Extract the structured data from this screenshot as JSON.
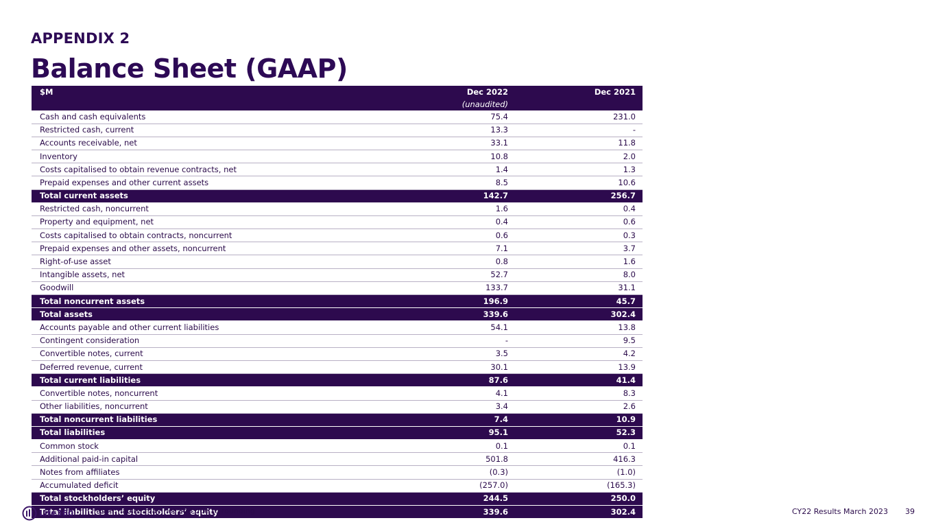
{
  "header": {
    "appendix": "APPENDIX 2",
    "title": "Balance Sheet (GAAP)"
  },
  "table": {
    "columns": [
      "$M",
      "Dec 2022",
      "Dec 2021"
    ],
    "subheader": "(unaudited)",
    "rows": [
      {
        "label": "Cash and cash equivalents",
        "dec2022": "75.4",
        "dec2021": "231.0",
        "total": false
      },
      {
        "label": "Restricted cash, current",
        "dec2022": "13.3",
        "dec2021": "-",
        "total": false
      },
      {
        "label": "Accounts receivable, net",
        "dec2022": "33.1",
        "dec2021": "11.8",
        "total": false
      },
      {
        "label": "Inventory",
        "dec2022": "10.8",
        "dec2021": "2.0",
        "total": false
      },
      {
        "label": "Costs capitalised to obtain revenue contracts, net",
        "dec2022": "1.4",
        "dec2021": "1.3",
        "total": false
      },
      {
        "label": "Prepaid expenses and other current assets",
        "dec2022": "8.5",
        "dec2021": "10.6",
        "total": false
      },
      {
        "label": "Total current assets",
        "dec2022": "142.7",
        "dec2021": "256.7",
        "total": true
      },
      {
        "label": "Restricted cash, noncurrent",
        "dec2022": "1.6",
        "dec2021": "0.4",
        "total": false
      },
      {
        "label": "Property and equipment, net",
        "dec2022": "0.4",
        "dec2021": "0.6",
        "total": false
      },
      {
        "label": "Costs capitalised to obtain contracts, noncurrent",
        "dec2022": "0.6",
        "dec2021": "0.3",
        "total": false
      },
      {
        "label": "Prepaid expenses and other assets, noncurrent",
        "dec2022": "7.1",
        "dec2021": "3.7",
        "total": false
      },
      {
        "label": "Right-of-use asset",
        "dec2022": "0.8",
        "dec2021": "1.6",
        "total": false
      },
      {
        "label": "Intangible assets, net",
        "dec2022": "52.7",
        "dec2021": "8.0",
        "total": false
      },
      {
        "label": "Goodwill",
        "dec2022": "133.7",
        "dec2021": "31.1",
        "total": false
      },
      {
        "label": "Total noncurrent assets",
        "dec2022": "196.9",
        "dec2021": "45.7",
        "total": true
      },
      {
        "label": "Total assets",
        "dec2022": "339.6",
        "dec2021": "302.4",
        "total": true
      },
      {
        "label": "Accounts payable and other current liabilities",
        "dec2022": "54.1",
        "dec2021": "13.8",
        "total": false
      },
      {
        "label": "Contingent consideration",
        "dec2022": "-",
        "dec2021": "9.5",
        "total": false
      },
      {
        "label": "Convertible notes, current",
        "dec2022": "3.5",
        "dec2021": "4.2",
        "total": false
      },
      {
        "label": "Deferred revenue, current",
        "dec2022": "30.1",
        "dec2021": "13.9",
        "total": false
      },
      {
        "label": "Total current liabilities",
        "dec2022": "87.6",
        "dec2021": "41.4",
        "total": true
      },
      {
        "label": "Convertible notes, noncurrent",
        "dec2022": "4.1",
        "dec2021": "8.3",
        "total": false
      },
      {
        "label": "Other liabilities, noncurrent",
        "dec2022": "3.4",
        "dec2021": "2.6",
        "total": false
      },
      {
        "label": "Total noncurrent liabilities",
        "dec2022": "7.4",
        "dec2021": "10.9",
        "total": true
      },
      {
        "label": "Total liabilities",
        "dec2022": "95.1",
        "dec2021": "52.3",
        "total": true
      },
      {
        "label": "Common stock",
        "dec2022": "0.1",
        "dec2021": "0.1",
        "total": false
      },
      {
        "label": "Additional paid-in capital",
        "dec2022": "501.8",
        "dec2021": "416.3",
        "total": false
      },
      {
        "label": "Notes from affiliates",
        "dec2022": "(0.3)",
        "dec2021": "(1.0)",
        "total": false
      },
      {
        "label": "Accumulated deficit",
        "dec2022": "(257.0)",
        "dec2021": "(165.3)",
        "total": false
      },
      {
        "label": "Total stockholders’ equity",
        "dec2022": "244.5",
        "dec2021": "250.0",
        "total": true
      },
      {
        "label": "Total liabilities and stockholders’ equity",
        "dec2022": "339.6",
        "dec2021": "302.4",
        "total": true
      }
    ]
  },
  "footer": {
    "logo_text": "Life360",
    "note": "Note: Tables may not add due to rounding",
    "report": "CY22 Results March 2023",
    "page": "39"
  },
  "colors": {
    "primary": "#2d0a4e",
    "text": "#2a0a4a"
  },
  "icons": {
    "logo": "life360-logo-icon"
  }
}
